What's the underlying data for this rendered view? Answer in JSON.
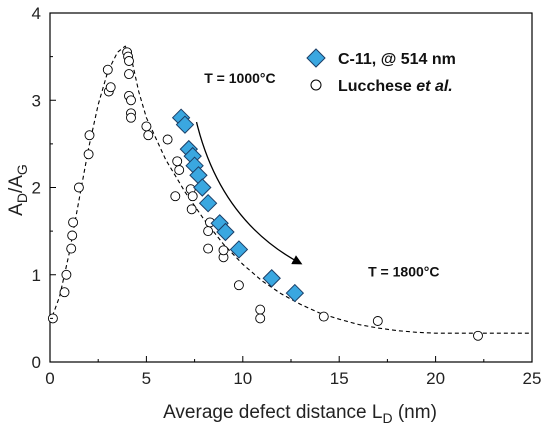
{
  "chart_data": {
    "type": "scatter",
    "xlabel_main": "Average defect distance L",
    "xlabel_sub": "D",
    "xlabel_unit": " (nm)",
    "ylabel_a": "A",
    "ylabel_a_sub": "D",
    "ylabel_slash": "/A",
    "ylabel_g_sub": "G",
    "xlim": [
      0,
      25
    ],
    "ylim": [
      0,
      4
    ],
    "xticks": [
      0,
      5,
      10,
      15,
      20,
      25
    ],
    "yticks": [
      0,
      1,
      2,
      3,
      4
    ],
    "xtick_labels": [
      "0",
      "5",
      "10",
      "15",
      "20",
      "25"
    ],
    "ytick_labels": [
      "0",
      "1",
      "2",
      "3",
      "4"
    ],
    "grid": false,
    "legend_placement": "top-right",
    "series": [
      {
        "name": "C-11, @ 514 nm",
        "marker": "diamond",
        "color": "#3aa7e0",
        "points": [
          [
            6.8,
            2.8
          ],
          [
            7.0,
            2.72
          ],
          [
            7.2,
            2.44
          ],
          [
            7.4,
            2.36
          ],
          [
            7.5,
            2.25
          ],
          [
            7.7,
            2.14
          ],
          [
            7.9,
            2.0
          ],
          [
            8.2,
            1.82
          ],
          [
            8.8,
            1.59
          ],
          [
            9.1,
            1.49
          ],
          [
            9.8,
            1.29
          ],
          [
            11.5,
            0.96
          ],
          [
            12.7,
            0.79
          ]
        ]
      },
      {
        "name_main": "Lucchese ",
        "name_italic": "et al.",
        "marker": "open-circle",
        "color": "#000000",
        "points": [
          [
            0.15,
            0.5
          ],
          [
            0.75,
            0.8
          ],
          [
            0.85,
            1.0
          ],
          [
            1.1,
            1.3
          ],
          [
            1.15,
            1.45
          ],
          [
            1.2,
            1.6
          ],
          [
            1.5,
            2.0
          ],
          [
            2.0,
            2.38
          ],
          [
            2.05,
            2.6
          ],
          [
            3.0,
            3.35
          ],
          [
            3.05,
            3.1
          ],
          [
            3.15,
            3.15
          ],
          [
            4.0,
            3.55
          ],
          [
            4.05,
            3.5
          ],
          [
            4.1,
            3.45
          ],
          [
            4.1,
            3.3
          ],
          [
            4.1,
            3.05
          ],
          [
            4.2,
            3.0
          ],
          [
            4.2,
            2.85
          ],
          [
            4.2,
            2.8
          ],
          [
            5.0,
            2.7
          ],
          [
            5.1,
            2.6
          ],
          [
            6.1,
            2.55
          ],
          [
            6.7,
            2.2
          ],
          [
            6.5,
            1.9
          ],
          [
            6.6,
            2.3
          ],
          [
            7.3,
            1.98
          ],
          [
            7.4,
            1.9
          ],
          [
            7.35,
            1.75
          ],
          [
            8.2,
            1.5
          ],
          [
            8.2,
            1.3
          ],
          [
            8.3,
            1.6
          ],
          [
            9.0,
            1.2
          ],
          [
            9.0,
            1.28
          ],
          [
            9.8,
            0.88
          ],
          [
            10.9,
            0.6
          ],
          [
            10.9,
            0.5
          ],
          [
            14.2,
            0.52
          ],
          [
            17.0,
            0.47
          ],
          [
            22.2,
            0.3
          ]
        ]
      }
    ],
    "fit_curve": [
      [
        0.0,
        0.45
      ],
      [
        0.5,
        0.75
      ],
      [
        1.0,
        1.25
      ],
      [
        1.5,
        1.85
      ],
      [
        2.0,
        2.45
      ],
      [
        2.5,
        2.95
      ],
      [
        3.0,
        3.33
      ],
      [
        3.5,
        3.55
      ],
      [
        3.9,
        3.62
      ],
      [
        4.2,
        3.5
      ],
      [
        4.6,
        3.1
      ],
      [
        5.0,
        2.8
      ],
      [
        6.0,
        2.32
      ],
      [
        7.0,
        1.95
      ],
      [
        8.0,
        1.63
      ],
      [
        9.0,
        1.35
      ],
      [
        10.0,
        1.12
      ],
      [
        11.0,
        0.93
      ],
      [
        12.0,
        0.78
      ],
      [
        13.0,
        0.66
      ],
      [
        14.0,
        0.56
      ],
      [
        15.0,
        0.49
      ],
      [
        16.0,
        0.43
      ],
      [
        17.0,
        0.39
      ],
      [
        18.0,
        0.36
      ],
      [
        19.0,
        0.34
      ],
      [
        20.0,
        0.33
      ],
      [
        22.0,
        0.33
      ],
      [
        25.0,
        0.33
      ]
    ],
    "annotations": [
      {
        "text": "T = 1000°C",
        "x": 8.0,
        "y": 3.2
      },
      {
        "text": "T = 1800°C",
        "x": 16.5,
        "y": 0.98
      }
    ],
    "arrow": {
      "from": [
        7.6,
        2.75
      ],
      "to": [
        13.0,
        1.13
      ]
    }
  }
}
